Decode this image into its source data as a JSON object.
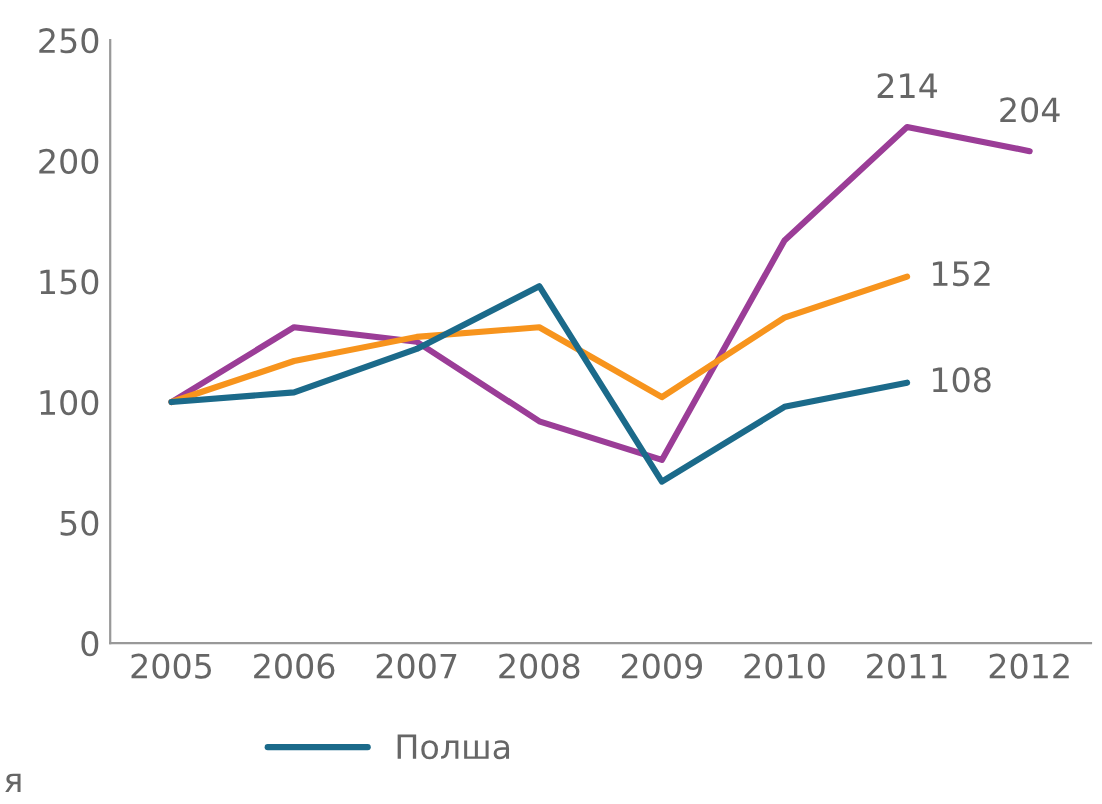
{
  "chart_data": {
    "type": "line",
    "categories": [
      "2005",
      "2006",
      "2007",
      "2008",
      "2009",
      "2010",
      "2011",
      "2012"
    ],
    "ylim": [
      0,
      250
    ],
    "yticks": [
      0,
      50,
      100,
      150,
      200,
      250
    ],
    "series": [
      {
        "color": "#9b3d97",
        "values": [
          100,
          131,
          125,
          92,
          76,
          167,
          214,
          204
        ],
        "value_labels": [
          null,
          null,
          null,
          null,
          null,
          null,
          "214",
          "204"
        ]
      },
      {
        "color": "#f7941d",
        "values": [
          100,
          117,
          127,
          131,
          102,
          135,
          152,
          null
        ],
        "value_labels": [
          null,
          null,
          null,
          null,
          null,
          null,
          "152",
          null
        ]
      },
      {
        "name": "Полша",
        "color": "#1b6a8a",
        "values": [
          100,
          104,
          122,
          148,
          67,
          98,
          108,
          null
        ],
        "value_labels": [
          null,
          null,
          null,
          null,
          null,
          null,
          "108",
          null
        ]
      }
    ],
    "annotations": [
      "я"
    ],
    "legend": "bottom",
    "grid": false,
    "marker": "none",
    "line_style": "solid"
  }
}
